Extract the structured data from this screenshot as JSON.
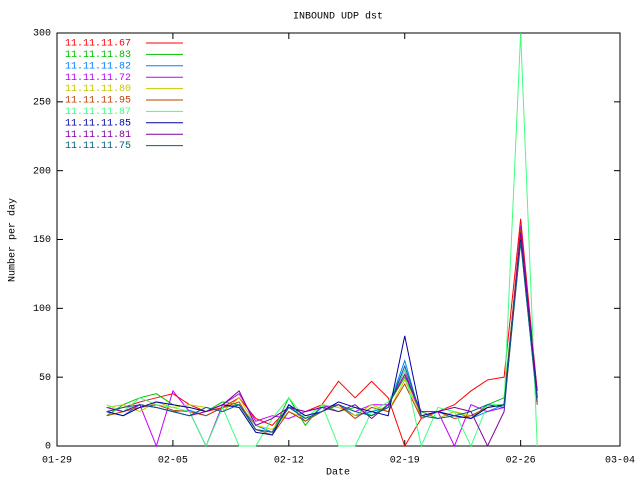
{
  "chart_data": {
    "type": "line",
    "title": "INBOUND UDP dst",
    "x_label": "Date",
    "y_label": "Number per day",
    "x": [
      "02-01",
      "02-02",
      "02-03",
      "02-04",
      "02-05",
      "02-06",
      "02-07",
      "02-08",
      "02-09",
      "02-10",
      "02-11",
      "02-12",
      "02-13",
      "02-14",
      "02-15",
      "02-16",
      "02-17",
      "02-18",
      "02-19",
      "02-20",
      "02-21",
      "02-22",
      "02-23",
      "02-24",
      "02-25",
      "02-26",
      "02-27"
    ],
    "xlim": [
      "01-29",
      "03-04"
    ],
    "xticks": [
      "01-29",
      "02-05",
      "02-12",
      "02-19",
      "02-26",
      "03-04"
    ],
    "ylim": [
      0,
      300
    ],
    "yticks": [
      0,
      50,
      100,
      150,
      200,
      250,
      300
    ],
    "grid": false,
    "legend": "top-left",
    "series": [
      {
        "name": "11.11.11.67",
        "color": "#ff0000",
        "values": [
          25,
          28,
          32,
          35,
          38,
          30,
          25,
          28,
          35,
          20,
          15,
          28,
          25,
          30,
          47,
          35,
          47,
          35,
          0,
          20,
          25,
          30,
          40,
          48,
          50,
          165,
          40
        ]
      },
      {
        "name": "11.11.11.83",
        "color": "#00c000",
        "values": [
          22,
          30,
          35,
          38,
          30,
          28,
          25,
          32,
          30,
          12,
          10,
          35,
          15,
          30,
          25,
          28,
          22,
          30,
          50,
          25,
          20,
          25,
          20,
          30,
          35,
          155,
          35
        ]
      },
      {
        "name": "11.11.11.82",
        "color": "#0080ff",
        "values": [
          25,
          22,
          30,
          28,
          25,
          26,
          22,
          28,
          30,
          15,
          10,
          30,
          18,
          28,
          30,
          22,
          25,
          28,
          62,
          20,
          25,
          22,
          20,
          25,
          30,
          150,
          30
        ]
      },
      {
        "name": "11.11.11.72",
        "color": "#c000ff",
        "values": [
          28,
          25,
          30,
          0,
          40,
          25,
          0,
          30,
          38,
          18,
          22,
          20,
          25,
          28,
          30,
          25,
          30,
          30,
          55,
          20,
          25,
          0,
          30,
          25,
          28,
          160,
          35
        ]
      },
      {
        "name": "11.11.11.80",
        "color": "#c8c800",
        "values": [
          28,
          30,
          25,
          32,
          28,
          30,
          28,
          25,
          35,
          15,
          12,
          25,
          20,
          30,
          28,
          22,
          30,
          25,
          48,
          22,
          20,
          25,
          22,
          28,
          30,
          152,
          32
        ]
      },
      {
        "name": "11.11.11.95",
        "color": "#c04000",
        "values": [
          22,
          25,
          28,
          30,
          26,
          25,
          22,
          28,
          32,
          12,
          8,
          25,
          18,
          25,
          30,
          20,
          28,
          25,
          45,
          20,
          25,
          20,
          22,
          28,
          30,
          158,
          30
        ]
      },
      {
        "name": "11.11.11.87",
        "color": "#40ff80",
        "values": [
          30,
          25,
          35,
          30,
          28,
          25,
          0,
          28,
          0,
          0,
          20,
          35,
          20,
          30,
          0,
          0,
          25,
          32,
          55,
          0,
          28,
          25,
          0,
          30,
          30,
          300,
          0
        ]
      },
      {
        "name": "11.11.11.85",
        "color": "#0000a0",
        "values": [
          25,
          22,
          28,
          32,
          30,
          28,
          25,
          30,
          28,
          10,
          8,
          30,
          22,
          25,
          32,
          28,
          25,
          22,
          80,
          22,
          25,
          22,
          20,
          28,
          30,
          150,
          35
        ]
      },
      {
        "name": "11.11.11.81",
        "color": "#8000a0",
        "values": [
          28,
          25,
          30,
          28,
          25,
          22,
          25,
          30,
          40,
          15,
          20,
          28,
          25,
          28,
          25,
          30,
          20,
          30,
          52,
          25,
          25,
          28,
          25,
          0,
          25,
          155,
          40
        ]
      },
      {
        "name": "11.11.11.75",
        "color": "#006080",
        "values": [
          25,
          28,
          30,
          28,
          25,
          22,
          28,
          25,
          30,
          12,
          10,
          28,
          20,
          25,
          30,
          25,
          22,
          28,
          58,
          22,
          20,
          22,
          25,
          30,
          28,
          148,
          32
        ]
      }
    ]
  }
}
